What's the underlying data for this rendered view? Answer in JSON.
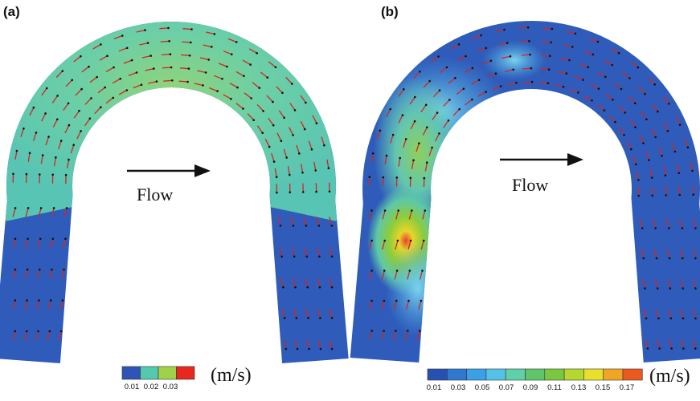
{
  "panels": [
    {
      "letter": "(a)",
      "flow_label": "Flow",
      "unit": "(m/s)",
      "colorbar": {
        "colors": [
          "#2e55b5",
          "#55c8b0",
          "#9fd24a",
          "#e8271f"
        ],
        "ticks": [
          "0.01",
          "0.02",
          "0.03"
        ]
      },
      "field": "uniform"
    },
    {
      "letter": "(b)",
      "flow_label": "Flow",
      "unit": "(m/s)",
      "colorbar": {
        "colors": [
          "#2750b0",
          "#2f78d0",
          "#3aa0e8",
          "#52c2e8",
          "#5fd0a8",
          "#5fc46a",
          "#7ac840",
          "#b4d830",
          "#e8e02a",
          "#f2a424",
          "#ea5a1e"
        ],
        "ticks": [
          "0.01",
          "0.03",
          "0.05",
          "0.07",
          "0.09",
          "0.11",
          "0.13",
          "0.15",
          "0.17"
        ]
      },
      "field": "hotspot"
    }
  ],
  "colors": {
    "field_blue": "#2f5cba",
    "vector_red": "#d8231d",
    "vector_black": "#111111"
  }
}
